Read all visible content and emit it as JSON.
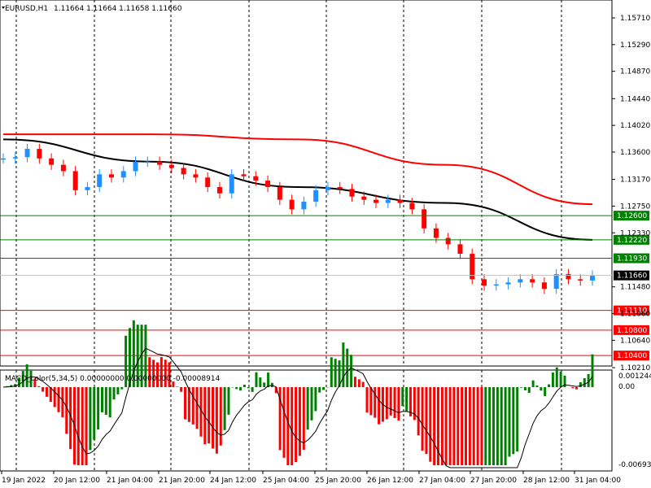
{
  "header": {
    "symbol_label": "EURUSD,H1",
    "ohlc": "1.11664 1.11664 1.11658 1.11660"
  },
  "price_axis": {
    "ticks": [
      "1.15710",
      "1.15290",
      "1.14870",
      "1.14440",
      "1.14020",
      "1.13600",
      "1.13170",
      "1.12750",
      "1.12330",
      "1.11480",
      "1.11060",
      "1.10640",
      "1.10210"
    ]
  },
  "levels": [
    {
      "label": "1.12600",
      "value": 1.126,
      "color": "#008000"
    },
    {
      "label": "1.12220",
      "value": 1.1222,
      "color": "#008000"
    },
    {
      "label": "1.11930",
      "value": 1.1193,
      "color": "#008000"
    },
    {
      "label": "1.11660",
      "value": 1.1166,
      "color": "#000000"
    },
    {
      "label": "1.11110",
      "value": 1.1111,
      "color": "#ff0000"
    },
    {
      "label": "1.10800",
      "value": 1.108,
      "color": "#ff0000"
    },
    {
      "label": "1.10400",
      "value": 1.104,
      "color": "#ff0000"
    }
  ],
  "time_axis": {
    "labels": [
      "19 Jan 2022",
      "20 Jan 12:00",
      "21 Jan 04:00",
      "21 Jan 20:00",
      "24 Jan 12:00",
      "25 Jan 04:00",
      "25 Jan 20:00",
      "26 Jan 12:00",
      "27 Jan 04:00",
      "27 Jan 20:00",
      "28 Jan 12:00",
      "31 Jan 04:00"
    ]
  },
  "macd": {
    "title": "MACD_color(5,34,5) 0.00000000 0.00000000 -0.00008914",
    "ticks": [
      "0.0012441",
      "0.00",
      "-0.006933"
    ]
  },
  "colors": {
    "up_candle": "#1e90ff",
    "down_candle": "#ff0000",
    "ma_slow": "#ff0000",
    "ma_fast": "#000000",
    "macd_up": "#008000",
    "macd_down": "#ff0000"
  },
  "chart_data": {
    "type": "line",
    "price_range": [
      1.1,
      1.16
    ],
    "series": [
      {
        "name": "close_path",
        "values": [
          1.135,
          1.1352,
          1.1365,
          1.135,
          1.134,
          1.133,
          1.13,
          1.1305,
          1.1325,
          1.132,
          1.133,
          1.1345,
          1.1345,
          1.134,
          1.1335,
          1.1325,
          1.132,
          1.1305,
          1.1295,
          1.1325,
          1.1322,
          1.1315,
          1.1305,
          1.1285,
          1.127,
          1.1282,
          1.13,
          1.1305,
          1.1302,
          1.129,
          1.1285,
          1.128,
          1.1285,
          1.128,
          1.127,
          1.124,
          1.1225,
          1.1215,
          1.12,
          1.116,
          1.115,
          1.1152,
          1.1155,
          1.116,
          1.1155,
          1.1145,
          1.1168,
          1.116,
          1.1158,
          1.1166
        ]
      },
      {
        "name": "",
        "values": [
          1.138,
          1.1345,
          1.1305,
          1.128,
          1.1222
        ]
      },
      {
        "name": "",
        "values": [
          1.1388,
          1.1388,
          1.138,
          1.134,
          1.1278
        ]
      }
    ]
  }
}
